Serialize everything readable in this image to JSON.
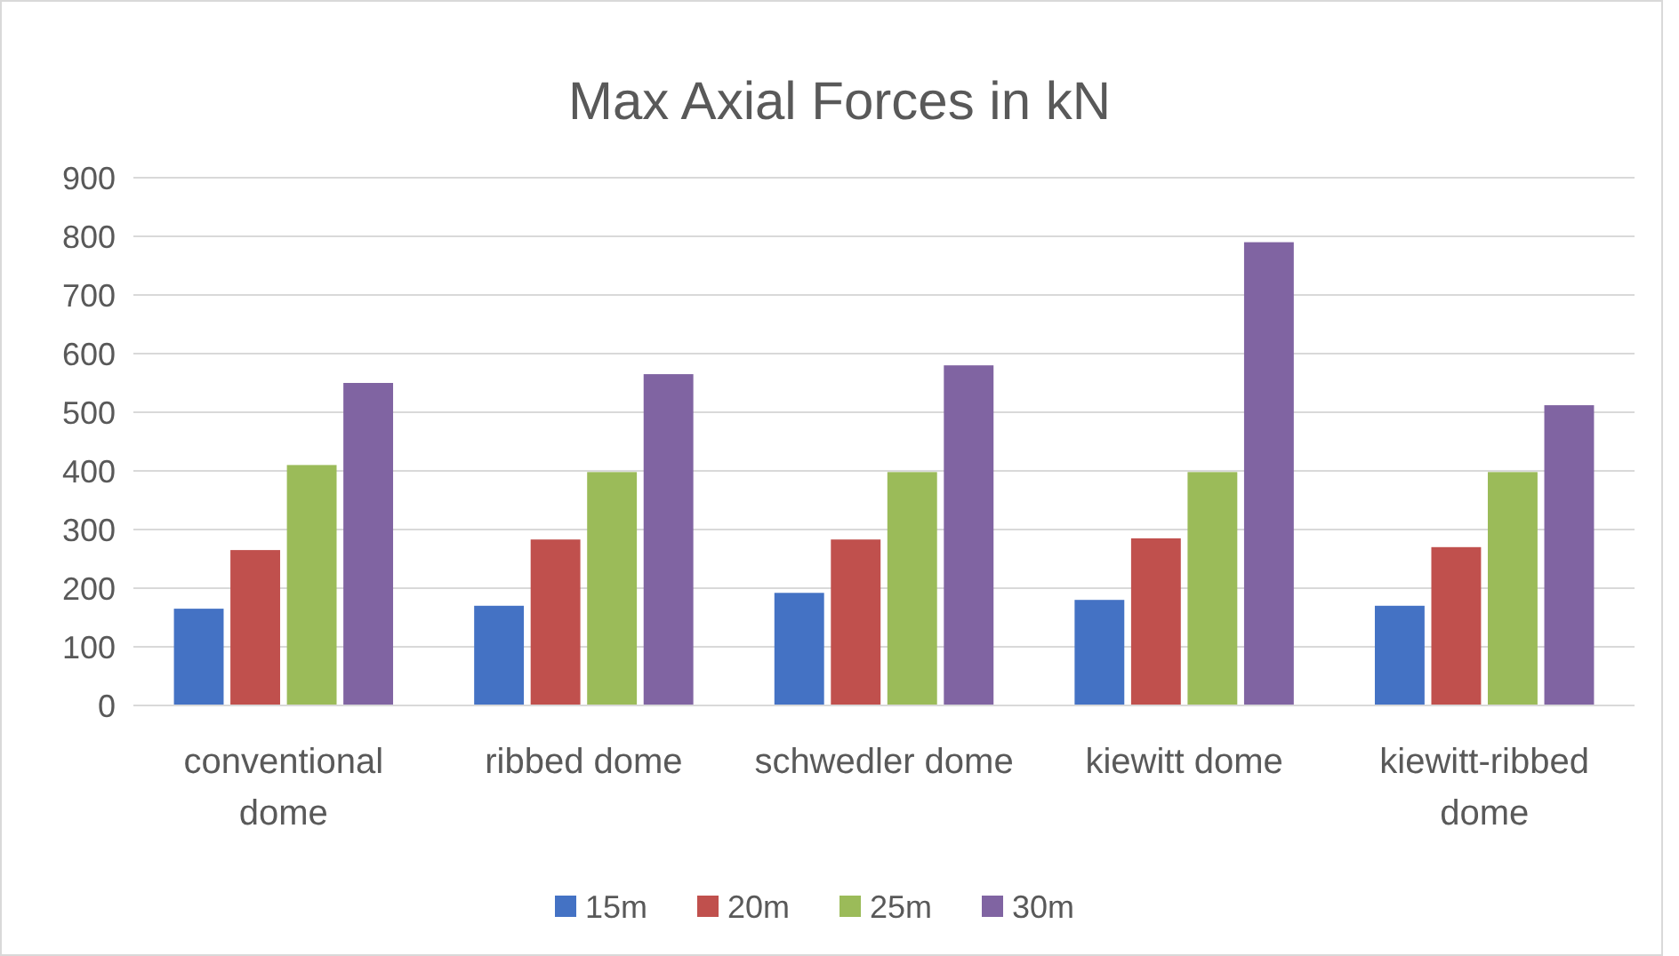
{
  "chart_data": {
    "type": "bar",
    "title": "Max Axial Forces in kN",
    "categories": [
      "conventional dome",
      "ribbed dome",
      "schwedler dome",
      "kiewitt dome",
      "kiewitt-ribbed dome"
    ],
    "series": [
      {
        "name": "15m",
        "color": "#4472c4",
        "values": [
          165,
          170,
          192,
          180,
          170
        ]
      },
      {
        "name": "20m",
        "color": "#c0504d",
        "values": [
          265,
          283,
          283,
          285,
          270
        ]
      },
      {
        "name": "25m",
        "color": "#9bbb59",
        "values": [
          410,
          398,
          398,
          398,
          398
        ]
      },
      {
        "name": "30m",
        "color": "#8064a2",
        "values": [
          550,
          565,
          580,
          790,
          512
        ]
      }
    ],
    "ylim": [
      0,
      900
    ],
    "yticks": [
      0,
      100,
      200,
      300,
      400,
      500,
      600,
      700,
      800,
      900
    ],
    "grid": "y",
    "legend": "bottom"
  }
}
